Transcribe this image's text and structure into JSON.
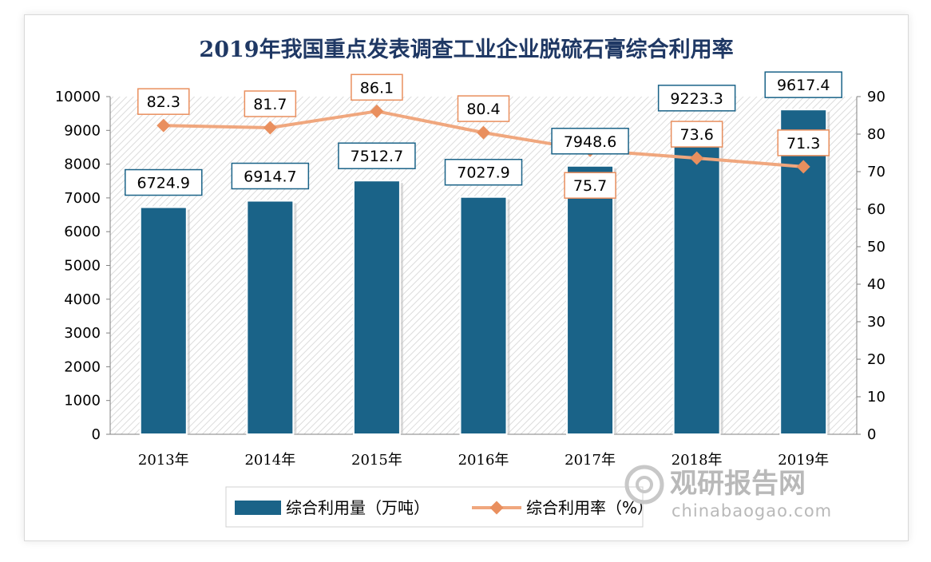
{
  "chart_data": {
    "type": "bar",
    "title": "2019年我国重点发表调查工业企业脱硫石膏综合利用率",
    "categories": [
      "2013年",
      "2014年",
      "2015年",
      "2016年",
      "2017年",
      "2018年",
      "2019年"
    ],
    "series": [
      {
        "name": "综合利用量（万吨）",
        "type": "bar",
        "axis": "left",
        "values": [
          6724.9,
          6914.7,
          7512.7,
          7027.9,
          7948.6,
          9223.3,
          9617.4
        ],
        "labels": [
          "6724.9",
          "6914.7",
          "7512.7",
          "7027.9",
          "7948.6",
          "9223.3",
          "9617.4"
        ],
        "color": "#1a6388"
      },
      {
        "name": "综合利用率（%）",
        "type": "line",
        "axis": "right",
        "values": [
          82.3,
          81.7,
          86.1,
          80.4,
          75.7,
          73.6,
          71.3
        ],
        "labels": [
          "82.3",
          "81.7",
          "86.1",
          "80.4",
          "75.7",
          "73.6",
          "71.3"
        ],
        "color": "#f0a77e",
        "marker_color": "#e98f5e"
      }
    ],
    "y_left": {
      "ylim": [
        0,
        10000
      ],
      "ticks": [
        "0",
        "1000",
        "2000",
        "3000",
        "4000",
        "5000",
        "6000",
        "7000",
        "8000",
        "9000",
        "10000"
      ]
    },
    "y_right": {
      "ylim": [
        0,
        90
      ],
      "ticks": [
        "0",
        "10",
        "20",
        "30",
        "40",
        "50",
        "60",
        "70",
        "80",
        "90"
      ]
    },
    "grid": false,
    "legend": "bottom"
  },
  "watermark": {
    "main": "观研报告网",
    "sub": "chinabaogao.com"
  }
}
